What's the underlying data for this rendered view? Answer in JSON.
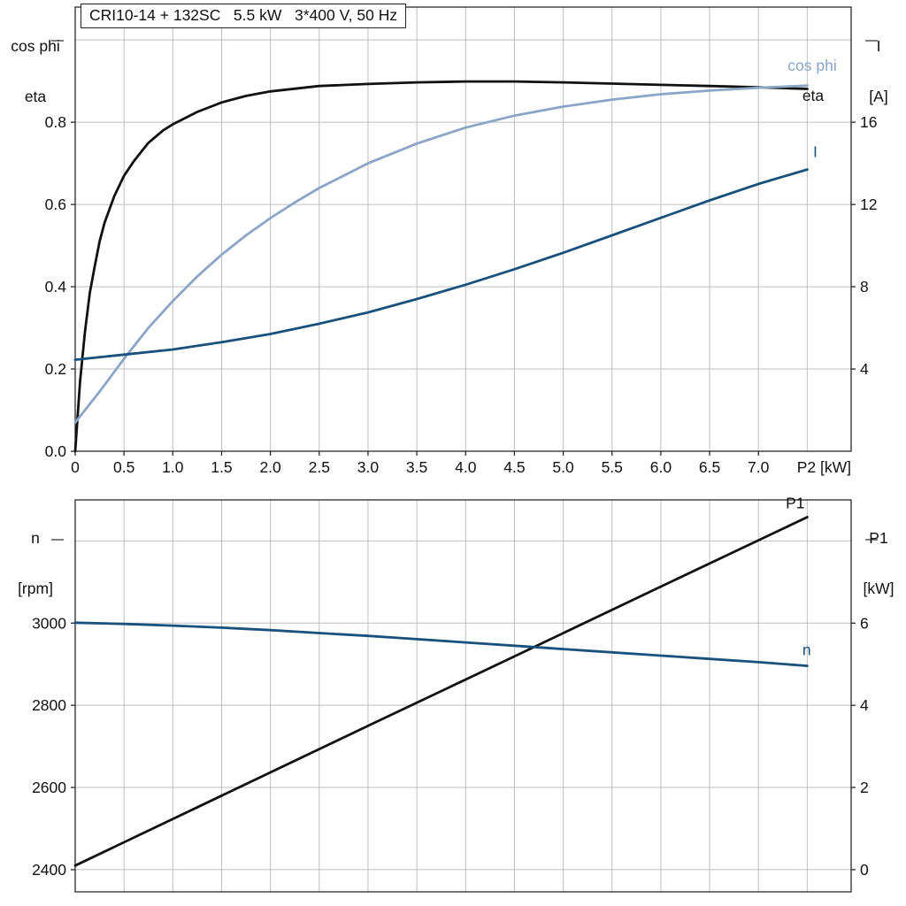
{
  "colors": {
    "eta": "#111111",
    "cos_phi": "#8aa5c6",
    "current": "#19507c",
    "speed": "#19507c",
    "p1": "#111111",
    "grid": "#bfbfbf",
    "frame": "#2a2a2a"
  },
  "chart_data": [
    {
      "type": "line",
      "title": "CRI10-14 + 132SC   5.5 kW   3*400 V, 50 Hz",
      "x_axis": {
        "label": "P2 [kW]",
        "lim": [
          0,
          7.95
        ],
        "grid_step": 0.5,
        "ticks": [
          0,
          0.5,
          1,
          1.5,
          2,
          2.5,
          3,
          3.5,
          4,
          4.5,
          5,
          5.5,
          6,
          6.5,
          7
        ],
        "tick_labels": [
          "0",
          "0.5",
          "1.0",
          "1.5",
          "2.0",
          "2.5",
          "3.0",
          "3.5",
          "4.0",
          "4.5",
          "5.0",
          "5.5",
          "6.0",
          "6.5",
          "7.0"
        ]
      },
      "left_axis": {
        "label_lines": [
          "cos phi",
          "eta"
        ],
        "lim": [
          0,
          1.08
        ],
        "grid_step": 0.2,
        "ticks": [
          0,
          0.2,
          0.4,
          0.6,
          0.8
        ],
        "tick_labels": [
          "0.0",
          "0.2",
          "0.4",
          "0.6",
          "0.8"
        ]
      },
      "right_axis": {
        "label_lines": [
          "I",
          "[A]"
        ],
        "lim": [
          0,
          21.6
        ],
        "ticks": [
          4,
          8,
          12,
          16
        ],
        "tick_labels": [
          "4",
          "8",
          "12",
          "16"
        ]
      },
      "series": [
        {
          "name": "eta",
          "axis": "left",
          "color_key": "eta",
          "x": [
            0,
            0.05,
            0.1,
            0.15,
            0.2,
            0.25,
            0.3,
            0.4,
            0.5,
            0.6,
            0.75,
            0.9,
            1.0,
            1.25,
            1.5,
            1.75,
            2.0,
            2.5,
            3.0,
            3.5,
            4.0,
            4.5,
            5.0,
            5.5,
            6.0,
            6.5,
            7.0,
            7.5
          ],
          "y": [
            0,
            0.17,
            0.29,
            0.385,
            0.45,
            0.51,
            0.555,
            0.62,
            0.67,
            0.705,
            0.75,
            0.78,
            0.795,
            0.825,
            0.848,
            0.864,
            0.875,
            0.888,
            0.893,
            0.897,
            0.899,
            0.899,
            0.897,
            0.894,
            0.891,
            0.888,
            0.885,
            0.881
          ]
        },
        {
          "name": "cos phi",
          "axis": "left",
          "color_key": "cos_phi",
          "x": [
            0,
            0.25,
            0.5,
            0.75,
            1.0,
            1.25,
            1.5,
            1.75,
            2.0,
            2.25,
            2.5,
            3.0,
            3.5,
            4.0,
            4.5,
            5.0,
            5.5,
            6.0,
            6.5,
            7.0,
            7.5
          ],
          "y": [
            0.07,
            0.145,
            0.225,
            0.3,
            0.365,
            0.425,
            0.478,
            0.525,
            0.567,
            0.605,
            0.64,
            0.7,
            0.748,
            0.787,
            0.816,
            0.838,
            0.855,
            0.868,
            0.877,
            0.884,
            0.889
          ]
        },
        {
          "name": "I",
          "axis": "right",
          "color_key": "current",
          "x": [
            0,
            0.5,
            1.0,
            1.5,
            2.0,
            2.5,
            3.0,
            3.5,
            4.0,
            4.5,
            5.0,
            5.5,
            6.0,
            6.5,
            7.0,
            7.5
          ],
          "y": [
            4.45,
            4.7,
            4.95,
            5.3,
            5.7,
            6.2,
            6.75,
            7.4,
            8.1,
            8.85,
            9.65,
            10.5,
            11.35,
            12.2,
            13.0,
            13.7
          ]
        }
      ],
      "curve_labels": [
        {
          "text": "cos phi",
          "x": 7.3,
          "y": 0.925,
          "axis": "left",
          "color_key": "cos_phi"
        },
        {
          "text": "eta",
          "x": 7.45,
          "y": 0.852,
          "axis": "left",
          "color_key": "eta"
        },
        {
          "text": "I",
          "x": 7.56,
          "y": 14.3,
          "axis": "right",
          "color_key": "current"
        }
      ]
    },
    {
      "type": "line",
      "title": null,
      "x_axis": {
        "label": null,
        "lim": [
          0,
          7.95
        ],
        "grid_step": 0.5,
        "ticks": [],
        "tick_labels": null
      },
      "left_axis": {
        "label_lines": [
          "n",
          "[rpm]"
        ],
        "lim": [
          2346,
          3300
        ],
        "grid_step": 200,
        "ticks": [
          2400,
          2600,
          2800,
          3000
        ],
        "tick_labels": [
          "2400",
          "2600",
          "2800",
          "3000"
        ]
      },
      "right_axis": {
        "label_lines": [
          "P1",
          "[kW]"
        ],
        "lim": [
          -0.54,
          9.0
        ],
        "ticks": [
          0,
          2,
          4,
          6
        ],
        "tick_labels": [
          "0",
          "2",
          "4",
          "6"
        ]
      },
      "series": [
        {
          "name": "P1",
          "axis": "right",
          "color_key": "p1",
          "x": [
            0,
            1.5,
            3.0,
            4.5,
            6.0,
            7.5
          ],
          "y": [
            0.1,
            1.8,
            3.5,
            5.19,
            6.89,
            8.58
          ]
        },
        {
          "name": "n",
          "axis": "left",
          "color_key": "speed",
          "x": [
            0,
            0.5,
            1,
            1.5,
            2,
            2.5,
            3,
            3.5,
            4,
            4.5,
            5,
            5.5,
            6,
            6.5,
            7,
            7.5
          ],
          "y": [
            3001,
            2998,
            2994,
            2989,
            2983,
            2976,
            2969,
            2961,
            2953,
            2945,
            2937,
            2929,
            2921,
            2913,
            2905,
            2896
          ]
        }
      ],
      "curve_labels": [
        {
          "text": "P1",
          "x": 7.28,
          "y": 8.8,
          "axis": "right",
          "color_key": "p1"
        },
        {
          "text": "n",
          "x": 7.45,
          "y": 2922,
          "axis": "left",
          "color_key": "speed"
        }
      ]
    }
  ]
}
